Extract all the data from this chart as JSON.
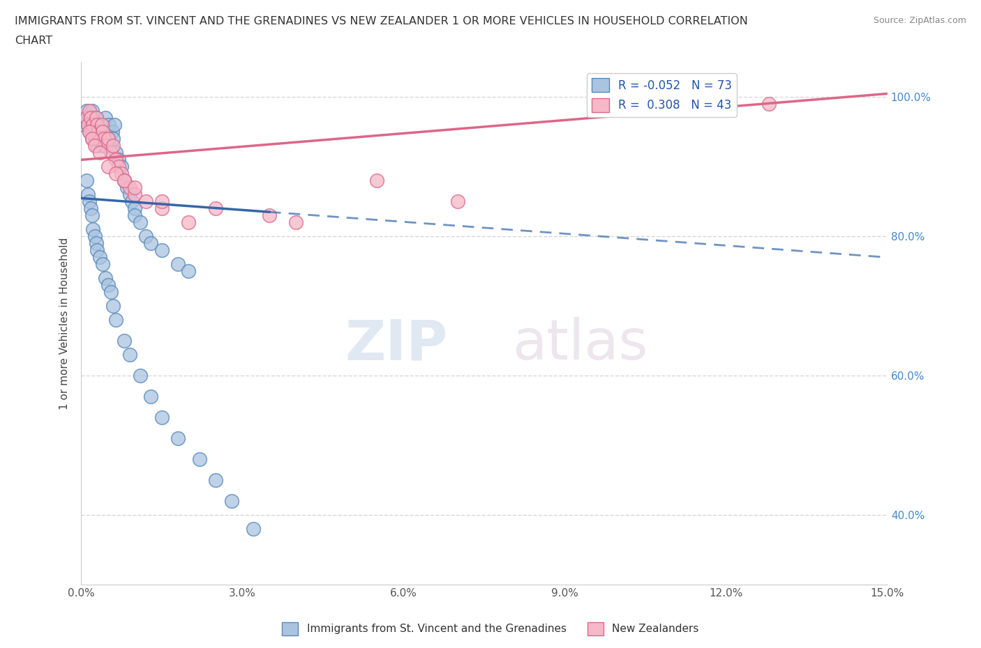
{
  "title_line1": "IMMIGRANTS FROM ST. VINCENT AND THE GRENADINES VS NEW ZEALANDER 1 OR MORE VEHICLES IN HOUSEHOLD CORRELATION",
  "title_line2": "CHART",
  "source": "Source: ZipAtlas.com",
  "blue_R": -0.052,
  "blue_N": 73,
  "pink_R": 0.308,
  "pink_N": 43,
  "blue_color": "#aac4e0",
  "blue_edge": "#5588bb",
  "blue_line_color": "#3366aa",
  "pink_color": "#f5b8c8",
  "pink_edge": "#dd6688",
  "pink_line_color": "#dd6688",
  "legend_blue_color": "#aac4e0",
  "legend_pink_color": "#f5b8c8",
  "blue_x": [
    0.05,
    0.08,
    0.1,
    0.12,
    0.15,
    0.15,
    0.18,
    0.2,
    0.2,
    0.22,
    0.22,
    0.25,
    0.25,
    0.28,
    0.28,
    0.3,
    0.3,
    0.32,
    0.35,
    0.35,
    0.38,
    0.4,
    0.4,
    0.42,
    0.45,
    0.48,
    0.5,
    0.52,
    0.55,
    0.58,
    0.6,
    0.62,
    0.65,
    0.7,
    0.75,
    0.8,
    0.85,
    0.9,
    0.95,
    1.0,
    1.0,
    1.1,
    1.2,
    1.3,
    1.5,
    1.8,
    2.0,
    0.1,
    0.12,
    0.15,
    0.18,
    0.2,
    0.22,
    0.25,
    0.28,
    0.3,
    0.35,
    0.4,
    0.45,
    0.5,
    0.55,
    0.6,
    0.65,
    0.8,
    0.9,
    1.1,
    1.3,
    1.5,
    1.8,
    2.2,
    2.5,
    2.8,
    3.2
  ],
  "blue_y": [
    96,
    97,
    98,
    96,
    97,
    95,
    96,
    98,
    94,
    97,
    95,
    96,
    94,
    97,
    95,
    96,
    93,
    95,
    96,
    94,
    95,
    96,
    93,
    94,
    97,
    95,
    94,
    96,
    93,
    95,
    94,
    96,
    92,
    91,
    90,
    88,
    87,
    86,
    85,
    84,
    83,
    82,
    80,
    79,
    78,
    76,
    75,
    88,
    86,
    85,
    84,
    83,
    81,
    80,
    79,
    78,
    77,
    76,
    74,
    73,
    72,
    70,
    68,
    65,
    63,
    60,
    57,
    54,
    51,
    48,
    45,
    42,
    38
  ],
  "pink_x": [
    0.1,
    0.12,
    0.15,
    0.18,
    0.2,
    0.22,
    0.25,
    0.28,
    0.3,
    0.32,
    0.35,
    0.38,
    0.4,
    0.42,
    0.45,
    0.5,
    0.55,
    0.6,
    0.65,
    0.7,
    0.75,
    0.8,
    0.9,
    1.0,
    1.2,
    1.5,
    2.0,
    0.15,
    0.2,
    0.25,
    0.35,
    0.5,
    0.65,
    0.8,
    1.0,
    1.5,
    2.5,
    3.5,
    4.0,
    5.5,
    7.0,
    11.5,
    12.8
  ],
  "pink_y": [
    97,
    96,
    98,
    97,
    95,
    96,
    94,
    97,
    96,
    95,
    94,
    96,
    95,
    94,
    93,
    94,
    92,
    93,
    91,
    90,
    89,
    88,
    87,
    86,
    85,
    84,
    82,
    95,
    94,
    93,
    92,
    90,
    89,
    88,
    87,
    85,
    84,
    83,
    82,
    88,
    85,
    100,
    99
  ],
  "xlim": [
    0,
    15.0
  ],
  "ylim": [
    30,
    105
  ],
  "blue_line_x0": 0.0,
  "blue_line_y0": 85.5,
  "blue_line_x1": 15.0,
  "blue_line_y1": 77.0,
  "blue_line_solid_end": 3.5,
  "pink_line_x0": 0.0,
  "pink_line_y0": 91.0,
  "pink_line_x1": 15.0,
  "pink_line_y1": 100.5,
  "watermark_top": "ZIP",
  "watermark_bottom": "atlas",
  "bg_color": "#ffffff"
}
